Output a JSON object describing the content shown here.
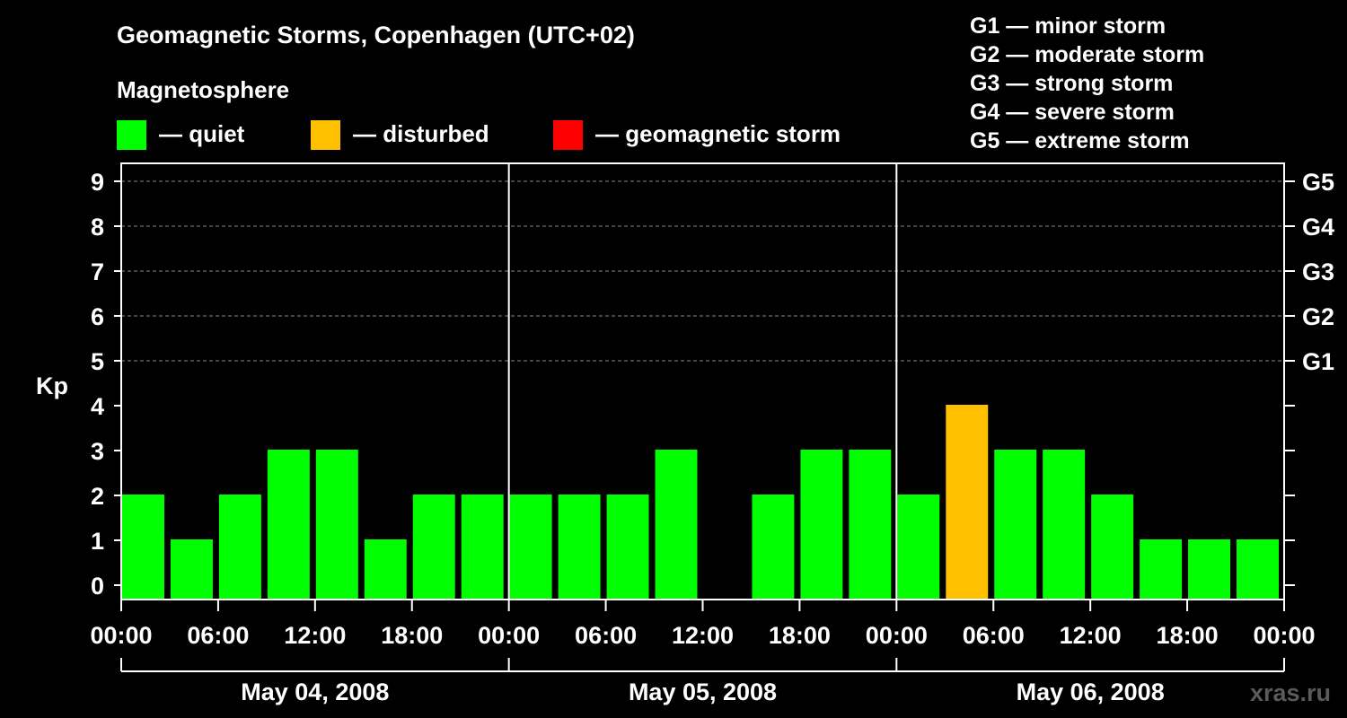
{
  "chart_data": {
    "type": "bar",
    "title": "Geomagnetic Storms, Copenhagen (UTC+02)",
    "legend_title": "Magnetosphere",
    "legend": [
      {
        "label": "— quiet",
        "color": "#00ff00"
      },
      {
        "label": "— disturbed",
        "color": "#ffc000"
      },
      {
        "label": "— geomagnetic storm",
        "color": "#ff0000"
      }
    ],
    "scale_legend": [
      "G1 — minor storm",
      "G2 — moderate storm",
      "G3 — strong storm",
      "G4 — severe storm",
      "G5 — extreme storm"
    ],
    "ylabel": "Kp",
    "ylim": [
      0,
      9
    ],
    "yticks": [
      "0",
      "1",
      "2",
      "3",
      "4",
      "5",
      "6",
      "7",
      "8",
      "9"
    ],
    "y2ticks": [
      {
        "value": 5,
        "label": "G1"
      },
      {
        "value": 6,
        "label": "G2"
      },
      {
        "value": 7,
        "label": "G3"
      },
      {
        "value": 8,
        "label": "G4"
      },
      {
        "value": 9,
        "label": "G5"
      }
    ],
    "x_unit": "hours since May 04, 2008 00:00",
    "xlim": [
      0,
      72
    ],
    "xticks": [
      {
        "hour": 0,
        "label": "00:00"
      },
      {
        "hour": 6,
        "label": "06:00"
      },
      {
        "hour": 12,
        "label": "12:00"
      },
      {
        "hour": 18,
        "label": "18:00"
      },
      {
        "hour": 24,
        "label": "00:00"
      },
      {
        "hour": 30,
        "label": "06:00"
      },
      {
        "hour": 36,
        "label": "12:00"
      },
      {
        "hour": 42,
        "label": "18:00"
      },
      {
        "hour": 48,
        "label": "00:00"
      },
      {
        "hour": 54,
        "label": "06:00"
      },
      {
        "hour": 60,
        "label": "12:00"
      },
      {
        "hour": 66,
        "label": "18:00"
      },
      {
        "hour": 72,
        "label": "00:00"
      }
    ],
    "days": [
      {
        "label": "May 04, 2008",
        "start": 0,
        "end": 24
      },
      {
        "label": "May 05, 2008",
        "start": 24,
        "end": 48
      },
      {
        "label": "May 06, 2008",
        "start": 48,
        "end": 72
      }
    ],
    "bar_start_hours": [
      0,
      3,
      6,
      9,
      12,
      15,
      18,
      21,
      24,
      27,
      30,
      33,
      36,
      39,
      42,
      45,
      48,
      51,
      54,
      57,
      60,
      63,
      66,
      69
    ],
    "values": [
      2,
      1,
      2,
      3,
      3,
      1,
      2,
      2,
      2,
      2,
      2,
      3,
      0,
      2,
      3,
      3,
      2,
      4,
      3,
      3,
      2,
      1,
      1,
      1
    ],
    "colors": [
      "#00ff00",
      "#00ff00",
      "#00ff00",
      "#00ff00",
      "#00ff00",
      "#00ff00",
      "#00ff00",
      "#00ff00",
      "#00ff00",
      "#00ff00",
      "#00ff00",
      "#00ff00",
      "#00ff00",
      "#00ff00",
      "#00ff00",
      "#00ff00",
      "#00ff00",
      "#ffc000",
      "#00ff00",
      "#00ff00",
      "#00ff00",
      "#00ff00",
      "#00ff00",
      "#00ff00"
    ],
    "grid": true
  },
  "watermark": "xras.ru"
}
